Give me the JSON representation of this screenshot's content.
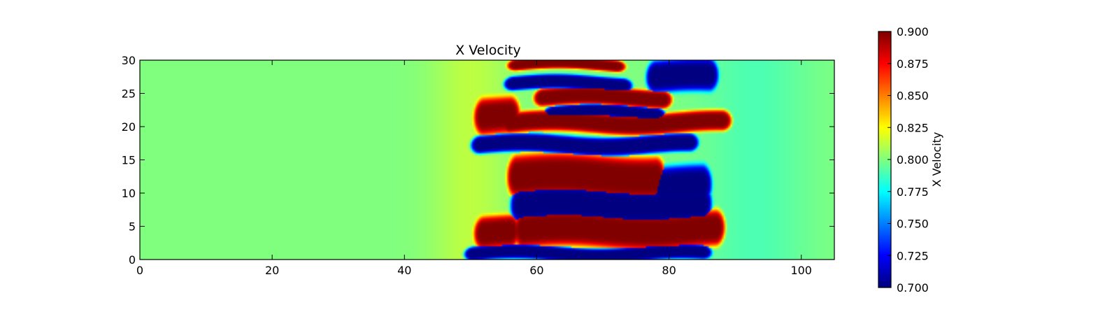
{
  "chart_data": {
    "type": "heatmap",
    "title": "X Velocity",
    "xlabel": "",
    "ylabel": "",
    "xlim": [
      0,
      105
    ],
    "ylim": [
      0,
      30
    ],
    "x_ticks": [
      0,
      20,
      40,
      60,
      80,
      100
    ],
    "x_tick_labels": [
      "0",
      "20",
      "40",
      "60",
      "80",
      "100"
    ],
    "y_ticks": [
      0,
      5,
      10,
      15,
      20,
      25,
      30
    ],
    "y_tick_labels": [
      "0",
      "5",
      "10",
      "15",
      "20",
      "25",
      "30"
    ],
    "colormap": "jet",
    "background_value": 0.8,
    "colorbar": {
      "label": "X Velocity",
      "vmin": 0.7,
      "vmax": 0.9,
      "ticks": [
        0.7,
        0.725,
        0.75,
        0.775,
        0.8,
        0.825,
        0.85,
        0.875,
        0.9
      ],
      "tick_labels": [
        "0.700",
        "0.725",
        "0.750",
        "0.775",
        "0.800",
        "0.825",
        "0.850",
        "0.875",
        "0.900"
      ]
    },
    "features": [
      {
        "label": "high-band-top",
        "value": 0.9,
        "x": [
          57,
          72
        ],
        "y": 29.3,
        "half_width": 0.9
      },
      {
        "label": "low-band-27",
        "value": 0.7,
        "x": [
          56.5,
          73
        ],
        "y": 26.5,
        "half_width": 1.1
      },
      {
        "label": "high-band-24",
        "value": 0.9,
        "x": [
          61,
          79
        ],
        "y": 24.4,
        "half_width": 1.4
      },
      {
        "label": "low-band-22",
        "value": 0.7,
        "x": [
          62.5,
          78
        ],
        "y": 22.1,
        "half_width": 1.0
      },
      {
        "label": "high-band-upper",
        "value": 0.9,
        "x": [
          56,
          88
        ],
        "y": 20.6,
        "half_width": 1.6
      },
      {
        "label": "low-band-17",
        "value": 0.7,
        "x": [
          51.5,
          83
        ],
        "y": 17.3,
        "half_width": 1.4
      },
      {
        "label": "high-band-mid",
        "value": 0.9,
        "x": [
          57,
          78
        ],
        "y": 12.5,
        "half_width": 3.3
      },
      {
        "label": "low-band-8",
        "value": 0.7,
        "x": [
          57.5,
          85
        ],
        "y": 8.2,
        "half_width": 2.8
      },
      {
        "label": "high-band-low",
        "value": 0.9,
        "x": [
          58,
          87
        ],
        "y": 4.5,
        "half_width": 2.8
      },
      {
        "label": "low-band-bottom",
        "value": 0.7,
        "x": [
          50.5,
          85
        ],
        "y": 0.9,
        "half_width": 1.1
      },
      {
        "label": "high-edge-upper",
        "value": 0.9,
        "x": [
          52,
          56
        ],
        "y": 21.5,
        "half_width": 2.8
      },
      {
        "label": "high-edge-lower",
        "value": 0.9,
        "x": [
          52,
          56
        ],
        "y": 4.0,
        "half_width": 2.5
      },
      {
        "label": "low-right-upper",
        "value": 0.7,
        "x": [
          78,
          86
        ],
        "y": 27.5,
        "half_width": 2.5
      },
      {
        "label": "low-right-lower",
        "value": 0.7,
        "x": [
          79,
          85
        ],
        "y": 11.0,
        "half_width": 3.0
      }
    ]
  }
}
